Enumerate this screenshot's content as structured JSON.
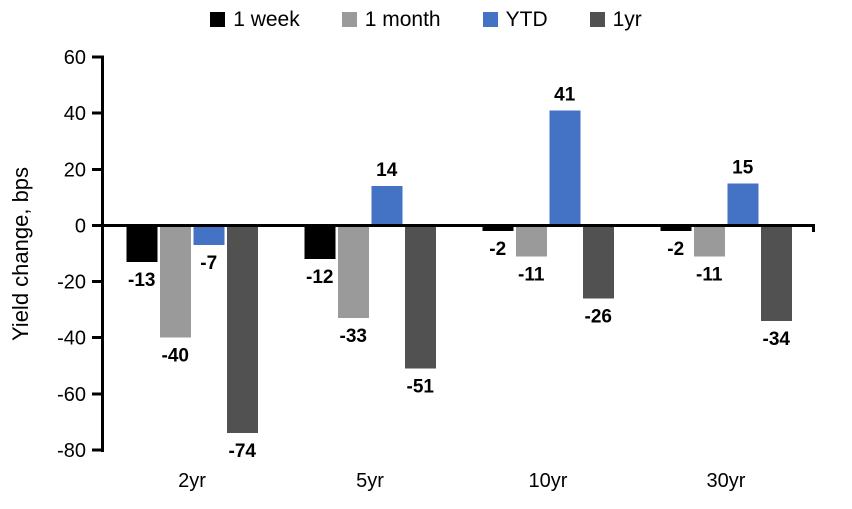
{
  "chart_data": {
    "type": "bar",
    "title": "",
    "xlabel": "",
    "ylabel": "Yield change, bps",
    "categories": [
      "2yr",
      "5yr",
      "10yr",
      "30yr"
    ],
    "series": [
      {
        "name": "1 week",
        "color": "#000000",
        "values": [
          -13,
          -12,
          -2,
          -2
        ]
      },
      {
        "name": "1 month",
        "color": "#9a9a9a",
        "values": [
          -40,
          -33,
          -11,
          -11
        ]
      },
      {
        "name": "YTD",
        "color": "#4472c4",
        "values": [
          -7,
          14,
          41,
          15
        ]
      },
      {
        "name": "1yr",
        "color": "#515151",
        "values": [
          -74,
          -51,
          -26,
          -34
        ]
      }
    ],
    "ylim": [
      -80,
      60
    ],
    "yticks": [
      60,
      40,
      20,
      0,
      -20,
      -40,
      -60,
      -80
    ],
    "grid": false,
    "legend_position": "top",
    "data_labels": true,
    "axis_color": "#000000"
  }
}
